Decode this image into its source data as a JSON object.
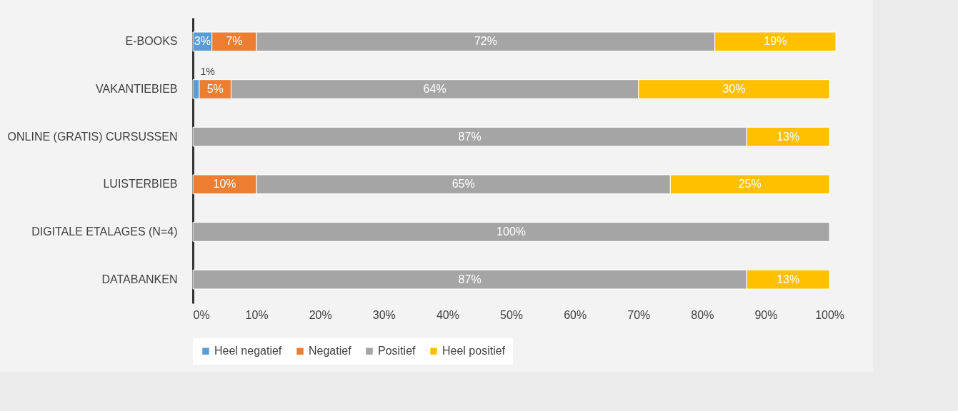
{
  "chart_data": {
    "type": "bar",
    "orientation": "horizontal",
    "stacked": true,
    "legend": "bottom",
    "categories": [
      "E-BOOKS",
      "VAKANTIEBIEB",
      "ONLINE (GRATIS) CURSUSSEN",
      "LUISTERBIEB",
      "DIGITALE ETALAGES (N=4)",
      "DATABANKEN"
    ],
    "xlim": [
      0,
      101
    ],
    "xticks": [
      {
        "value": 0,
        "label": "0%"
      },
      {
        "value": 10,
        "label": "10%"
      },
      {
        "value": 20,
        "label": "20%"
      },
      {
        "value": 30,
        "label": "30%"
      },
      {
        "value": 40,
        "label": "40%"
      },
      {
        "value": 50,
        "label": "50%"
      },
      {
        "value": 60,
        "label": "60%"
      },
      {
        "value": 70,
        "label": "70%"
      },
      {
        "value": 80,
        "label": "80%"
      },
      {
        "value": 90,
        "label": "90%"
      },
      {
        "value": 100,
        "label": "100%"
      }
    ],
    "series": [
      {
        "name": "Heel negatief",
        "color": "#5b9bd5",
        "values": [
          3,
          1,
          null,
          null,
          null,
          null
        ],
        "value_labels": [
          "3%",
          "1%",
          null,
          null,
          null,
          null
        ]
      },
      {
        "name": "Negatief",
        "color": "#ed7d31",
        "values": [
          7,
          5,
          null,
          10,
          null,
          null
        ],
        "value_labels": [
          "7%",
          "5%",
          null,
          "10%",
          null,
          null
        ]
      },
      {
        "name": "Positief",
        "color": "#a5a5a5",
        "values": [
          72,
          64,
          87,
          65,
          100,
          87
        ],
        "value_labels": [
          "72%",
          "64%",
          "87%",
          "65%",
          "100%",
          "87%"
        ]
      },
      {
        "name": "Heel positief",
        "color": "#ffc000",
        "values": [
          19,
          30,
          13,
          25,
          null,
          13
        ],
        "value_labels": [
          "19%",
          "30%",
          "13%",
          "25%",
          null,
          "13%"
        ]
      }
    ]
  }
}
